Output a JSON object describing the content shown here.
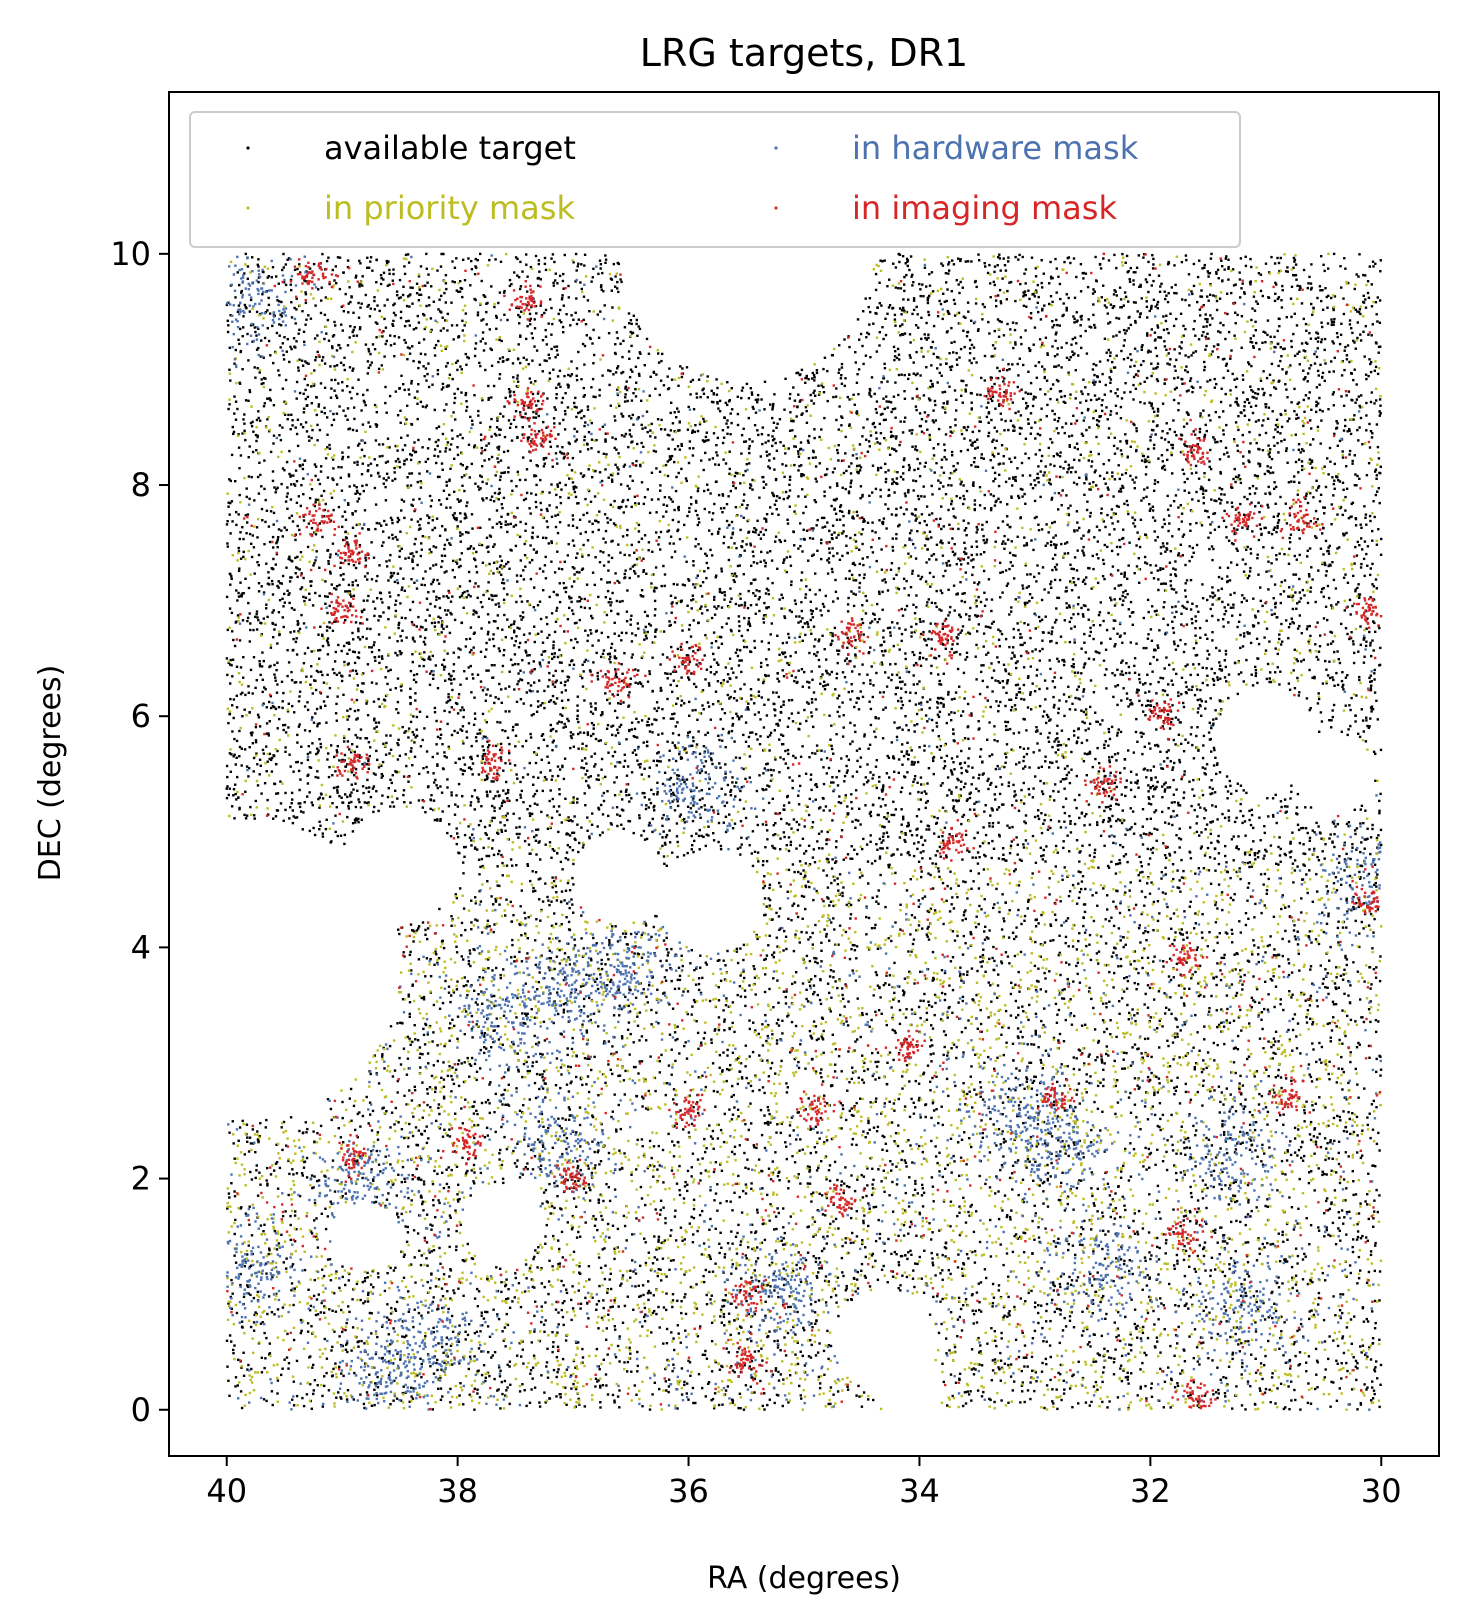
{
  "chart_data": {
    "type": "scatter",
    "title": "LRG targets, DR1",
    "xlabel": "RA (degrees)",
    "ylabel": "DEC (degrees)",
    "xlim": [
      40.5,
      29.5
    ],
    "ylim": [
      -0.4,
      11.4
    ],
    "x_ticks": [
      40,
      38,
      36,
      34,
      32,
      30
    ],
    "y_ticks": [
      0,
      2,
      4,
      6,
      8,
      10
    ],
    "grid": false,
    "legend": {
      "placement": "top-left",
      "columns": 2
    },
    "data_extent": {
      "ra": [
        30,
        40
      ],
      "dec": [
        0,
        10
      ]
    },
    "series": [
      {
        "name": "available target",
        "color": "#000000"
      },
      {
        "name": "in priority mask",
        "color": "#bcbd22"
      },
      {
        "name": "in hardware mask",
        "color": "#4c72b0"
      },
      {
        "name": "in imaging mask",
        "color": "#d62728"
      }
    ],
    "empty_regions_radec": [
      {
        "ra": 35.5,
        "dec": 10.0,
        "r": 1.1
      },
      {
        "ra": 39.8,
        "dec": 3.8,
        "r": 1.3
      },
      {
        "ra": 38.5,
        "dec": 4.7,
        "r": 0.5
      },
      {
        "ra": 36.6,
        "dec": 4.6,
        "r": 0.4
      },
      {
        "ra": 35.8,
        "dec": 4.4,
        "r": 0.45
      },
      {
        "ra": 37.6,
        "dec": 1.6,
        "r": 0.35
      },
      {
        "ra": 38.8,
        "dec": 1.5,
        "r": 0.3
      },
      {
        "ra": 34.3,
        "dec": 0.6,
        "r": 0.45
      },
      {
        "ra": 34.1,
        "dec": 0.2,
        "r": 0.3
      },
      {
        "ra": 31.0,
        "dec": 5.8,
        "r": 0.45
      },
      {
        "ra": 30.4,
        "dec": 5.5,
        "r": 0.35
      }
    ],
    "imaging_clusters_radec": [
      [
        39.2,
        7.7
      ],
      [
        38.9,
        7.4
      ],
      [
        39.0,
        6.9
      ],
      [
        38.9,
        5.6
      ],
      [
        37.7,
        5.6
      ],
      [
        36.6,
        6.3
      ],
      [
        36.0,
        6.5
      ],
      [
        37.3,
        8.4
      ],
      [
        37.4,
        8.7
      ],
      [
        39.3,
        9.8
      ],
      [
        37.4,
        9.6
      ],
      [
        38.9,
        2.2
      ],
      [
        37.9,
        2.3
      ],
      [
        37.0,
        2.0
      ],
      [
        36.0,
        2.6
      ],
      [
        34.9,
        2.6
      ],
      [
        34.1,
        3.1
      ],
      [
        33.7,
        4.9
      ],
      [
        32.4,
        5.4
      ],
      [
        33.3,
        8.8
      ],
      [
        31.6,
        8.3
      ],
      [
        31.2,
        7.7
      ],
      [
        30.7,
        7.7
      ],
      [
        30.1,
        6.9
      ],
      [
        31.9,
        6.0
      ],
      [
        33.8,
        6.7
      ],
      [
        34.6,
        6.7
      ],
      [
        35.5,
        1.0
      ],
      [
        35.5,
        0.4
      ],
      [
        31.7,
        1.5
      ],
      [
        31.6,
        0.1
      ],
      [
        32.8,
        2.7
      ],
      [
        30.8,
        2.7
      ],
      [
        30.1,
        4.4
      ],
      [
        31.7,
        3.9
      ],
      [
        34.7,
        1.8
      ]
    ],
    "hardware_clusters_radec": [
      [
        38.2,
        0.6
      ],
      [
        38.6,
        0.3
      ],
      [
        37.0,
        3.6
      ],
      [
        36.5,
        3.8
      ],
      [
        37.6,
        3.4
      ],
      [
        37.1,
        2.3
      ],
      [
        38.8,
        2.0
      ],
      [
        32.8,
        2.3
      ],
      [
        31.3,
        2.2
      ],
      [
        32.4,
        1.2
      ],
      [
        35.2,
        1.0
      ],
      [
        39.8,
        9.6
      ],
      [
        31.2,
        0.9
      ],
      [
        33.2,
        2.6
      ],
      [
        30.1,
        4.6
      ],
      [
        35.9,
        5.4
      ],
      [
        39.8,
        1.2
      ]
    ]
  }
}
